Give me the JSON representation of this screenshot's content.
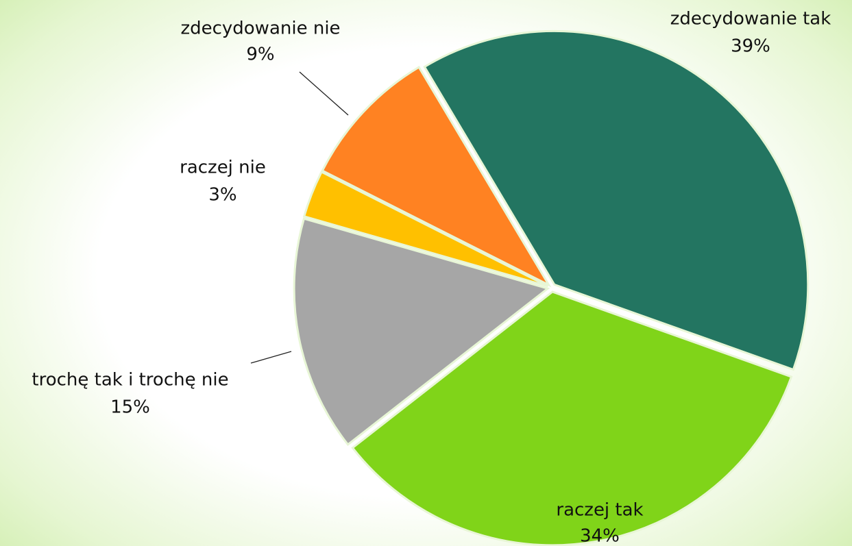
{
  "chart_data": {
    "type": "pie",
    "categories": [
      "zdecydowanie tak",
      "raczej tak",
      "trochę tak i trochę nie",
      "raczej nie",
      "zdecydowanie nie"
    ],
    "values": [
      39,
      34,
      15,
      3,
      9
    ],
    "value_labels": [
      "39%",
      "34%",
      "15%",
      "3%",
      "9%"
    ],
    "colors": [
      "#237561",
      "#80d419",
      "#a6a6a6",
      "#ffc000",
      "#ff8222"
    ]
  }
}
